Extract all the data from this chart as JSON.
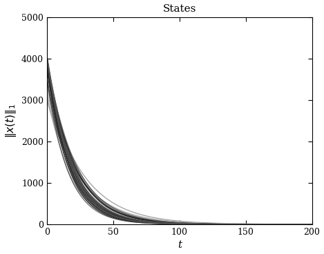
{
  "title": "States",
  "xlabel": "t",
  "ylabel": "$\\|x(t)\\|_1$",
  "xlim": [
    0,
    200
  ],
  "ylim": [
    0,
    5000
  ],
  "xticks": [
    0,
    50,
    100,
    150,
    200
  ],
  "yticks": [
    0,
    1000,
    2000,
    3000,
    4000,
    5000
  ],
  "n_curves": 30,
  "t_max": 200,
  "t_steps": 1000,
  "background_color": "#ffffff",
  "title_fontsize": 11,
  "axis_label_fontsize": 11
}
